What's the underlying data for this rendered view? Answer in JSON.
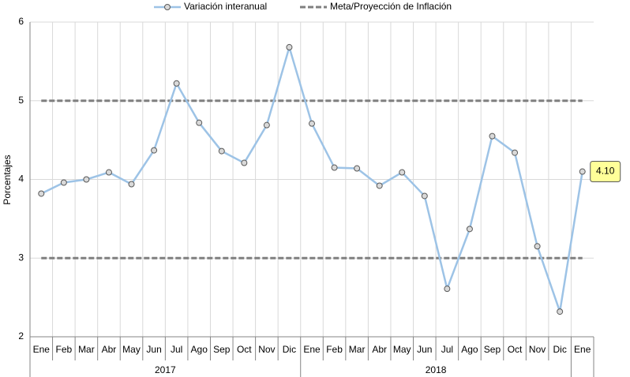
{
  "chart_data": {
    "type": "line",
    "ylabel": "Porcentajes",
    "groups": [
      {
        "label": "2017",
        "categories": [
          "Ene",
          "Feb",
          "Mar",
          "Abr",
          "May",
          "Jun",
          "Jul",
          "Ago",
          "Sep",
          "Oct",
          "Nov",
          "Dic"
        ]
      },
      {
        "label": "2018",
        "categories": [
          "Ene",
          "Feb",
          "Mar",
          "Abr",
          "May",
          "Jun",
          "Jul",
          "Ago",
          "Sep",
          "Oct",
          "Nov",
          "Dic"
        ]
      },
      {
        "label": null,
        "categories": [
          "Ene"
        ]
      }
    ],
    "series": [
      {
        "name": "Variación interanual",
        "color": "#9dc3e6",
        "values": [
          3.82,
          3.96,
          4.0,
          4.09,
          3.94,
          4.37,
          5.22,
          4.72,
          4.36,
          4.21,
          4.69,
          5.68,
          4.71,
          4.15,
          4.14,
          3.92,
          4.09,
          3.79,
          2.61,
          3.37,
          4.55,
          4.34,
          3.15,
          2.32,
          4.1
        ],
        "value_labels": [
          null,
          null,
          null,
          null,
          null,
          null,
          null,
          null,
          null,
          null,
          null,
          null,
          null,
          null,
          null,
          null,
          null,
          null,
          null,
          null,
          null,
          null,
          null,
          null,
          "4.10"
        ]
      }
    ],
    "target_band": {
      "name": "Meta/Proyección de Inflación",
      "color": "#7f7f7f",
      "values": [
        3,
        5
      ]
    },
    "ylim": [
      2,
      6
    ],
    "yticks": [
      2,
      3,
      4,
      5,
      6
    ],
    "grid": true
  }
}
